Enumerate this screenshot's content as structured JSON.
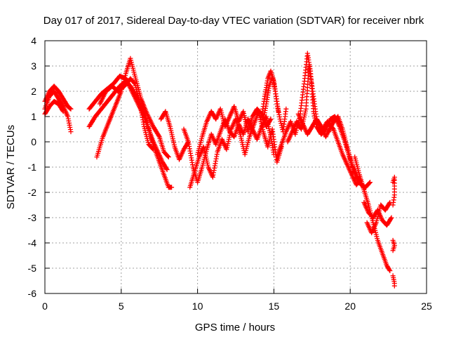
{
  "chart_data": {
    "type": "scatter",
    "title": "Day 017 of 2017, Sidereal Day-to-day VTEC variation (SDTVAR) for receiver nbrk",
    "xlabel": "GPS time / hours",
    "ylabel": "SDTVAR / TECUs",
    "xlim": [
      0,
      25
    ],
    "ylim": [
      -6,
      4
    ],
    "x_ticks": [
      "0",
      "5",
      "10",
      "15",
      "20",
      "25"
    ],
    "y_ticks": [
      "-6",
      "-5",
      "-4",
      "-3",
      "-2",
      "-1",
      "0",
      "1",
      "2",
      "3",
      "4"
    ],
    "x_tick_values": [
      0,
      5,
      10,
      15,
      20,
      25
    ],
    "y_tick_values": [
      -6,
      -5,
      -4,
      -3,
      -2,
      -1,
      0,
      1,
      2,
      3,
      4
    ],
    "grid": true,
    "legend": "none",
    "marker": "+",
    "series": [
      {
        "name": "nbrk",
        "color": "#ff0000",
        "tracks": [
          [
            [
              0.0,
              1.3
            ],
            [
              0.3,
              1.8
            ],
            [
              0.6,
              2.0
            ],
            [
              0.9,
              1.7
            ],
            [
              1.2,
              1.4
            ],
            [
              1.5,
              1.0
            ],
            [
              1.7,
              0.4
            ]
          ],
          [
            [
              0.0,
              1.6
            ],
            [
              0.3,
              2.0
            ],
            [
              0.6,
              2.2
            ],
            [
              0.9,
              2.0
            ],
            [
              1.2,
              1.7
            ],
            [
              1.5,
              1.4
            ],
            [
              1.7,
              1.3
            ]
          ],
          [
            [
              0.0,
              1.1
            ],
            [
              0.3,
              1.4
            ],
            [
              0.6,
              1.6
            ],
            [
              0.9,
              1.5
            ],
            [
              1.2,
              1.2
            ]
          ],
          [
            [
              2.9,
              0.6
            ],
            [
              3.3,
              1.0
            ],
            [
              3.7,
              1.3
            ],
            [
              4.1,
              1.6
            ],
            [
              4.5,
              1.9
            ],
            [
              4.9,
              2.2
            ],
            [
              5.3,
              2.4
            ],
            [
              5.6,
              2.2
            ],
            [
              6.0,
              1.8
            ],
            [
              6.3,
              1.4
            ],
            [
              6.6,
              1.0
            ],
            [
              6.9,
              0.3
            ],
            [
              7.2,
              -0.3
            ],
            [
              7.5,
              -0.8
            ],
            [
              7.8,
              -1.3
            ],
            [
              8.1,
              -1.8
            ],
            [
              8.3,
              -1.8
            ]
          ],
          [
            [
              2.9,
              1.3
            ],
            [
              3.3,
              1.6
            ],
            [
              3.7,
              1.9
            ],
            [
              4.1,
              2.1
            ],
            [
              4.5,
              2.3
            ],
            [
              4.9,
              2.6
            ],
            [
              5.3,
              2.5
            ],
            [
              5.7,
              2.0
            ],
            [
              6.1,
              1.5
            ],
            [
              6.5,
              1.0
            ],
            [
              6.8,
              0.5
            ],
            [
              7.1,
              0.0
            ],
            [
              7.4,
              -0.4
            ],
            [
              7.7,
              -0.8
            ],
            [
              8.0,
              -1.1
            ]
          ],
          [
            [
              3.4,
              -0.6
            ],
            [
              3.8,
              0.2
            ],
            [
              4.2,
              0.8
            ],
            [
              4.6,
              1.4
            ],
            [
              5.0,
              2.0
            ],
            [
              5.3,
              2.7
            ],
            [
              5.6,
              3.3
            ],
            [
              5.9,
              2.6
            ],
            [
              6.3,
              1.7
            ],
            [
              6.7,
              1.1
            ],
            [
              7.1,
              0.6
            ],
            [
              7.5,
              0.2
            ],
            [
              7.8,
              -0.4
            ],
            [
              8.1,
              -0.6
            ]
          ],
          [
            [
              3.6,
              1.5
            ],
            [
              4.0,
              2.0
            ],
            [
              4.4,
              2.2
            ],
            [
              4.8,
              2.0
            ],
            [
              5.2,
              2.2
            ],
            [
              5.6,
              2.5
            ],
            [
              5.9,
              2.3
            ],
            [
              6.2,
              1.6
            ],
            [
              6.5,
              0.6
            ],
            [
              6.8,
              -0.1
            ],
            [
              7.1,
              -0.3
            ]
          ],
          [
            [
              7.6,
              0.9
            ],
            [
              7.9,
              1.2
            ],
            [
              8.2,
              0.6
            ],
            [
              8.5,
              -0.2
            ],
            [
              8.8,
              -0.7
            ],
            [
              9.1,
              -0.3
            ],
            [
              9.4,
              0.0
            ]
          ],
          [
            [
              9.1,
              0.5
            ],
            [
              9.4,
              0.0
            ],
            [
              9.7,
              -1.0
            ],
            [
              10.0,
              -1.6
            ],
            [
              10.3,
              -1.0
            ],
            [
              10.6,
              -0.3
            ],
            [
              10.9,
              0.3
            ],
            [
              11.2,
              -0.1
            ],
            [
              11.5,
              0.4
            ],
            [
              11.8,
              0.9
            ],
            [
              12.1,
              0.4
            ],
            [
              12.4,
              0.2
            ],
            [
              12.7,
              0.7
            ],
            [
              13.0,
              0.3
            ],
            [
              13.3,
              0.9
            ],
            [
              13.6,
              0.5
            ],
            [
              13.9,
              0.1
            ],
            [
              14.2,
              0.6
            ],
            [
              14.5,
              1.0
            ],
            [
              14.8,
              0.2
            ],
            [
              15.0,
              -0.5
            ]
          ],
          [
            [
              9.5,
              -1.8
            ],
            [
              9.8,
              -1.2
            ],
            [
              10.1,
              -0.6
            ],
            [
              10.4,
              -0.2
            ],
            [
              10.7,
              -1.0
            ],
            [
              11.0,
              -1.4
            ],
            [
              11.3,
              -0.4
            ],
            [
              11.6,
              0.1
            ],
            [
              11.9,
              -0.3
            ],
            [
              12.2,
              0.5
            ],
            [
              12.5,
              0.9
            ],
            [
              12.8,
              0.3
            ],
            [
              13.1,
              -0.5
            ],
            [
              13.4,
              0.2
            ],
            [
              13.7,
              0.7
            ],
            [
              14.0,
              1.2
            ],
            [
              14.3,
              0.4
            ],
            [
              14.6,
              -0.2
            ],
            [
              14.9,
              0.5
            ],
            [
              15.2,
              -0.8
            ],
            [
              15.5,
              -0.2
            ]
          ],
          [
            [
              10.0,
              -0.5
            ],
            [
              10.3,
              0.2
            ],
            [
              10.6,
              0.8
            ],
            [
              10.9,
              1.2
            ],
            [
              11.2,
              0.9
            ],
            [
              11.5,
              1.3
            ],
            [
              11.8,
              0.6
            ],
            [
              12.1,
              1.0
            ],
            [
              12.4,
              1.4
            ],
            [
              12.7,
              0.8
            ],
            [
              13.0,
              1.2
            ],
            [
              13.3,
              0.4
            ],
            [
              13.6,
              1.0
            ],
            [
              13.9,
              1.3
            ],
            [
              14.2,
              1.1
            ],
            [
              14.5,
              0.6
            ],
            [
              14.8,
              0.9
            ]
          ],
          [
            [
              14.2,
              1.0
            ],
            [
              14.4,
              1.8
            ],
            [
              14.6,
              2.5
            ],
            [
              14.8,
              2.8
            ],
            [
              15.0,
              2.4
            ],
            [
              15.2,
              1.5
            ],
            [
              15.4,
              0.9
            ],
            [
              15.6,
              0.4
            ],
            [
              15.8,
              1.3
            ]
          ],
          [
            [
              14.3,
              0.8
            ],
            [
              14.5,
              1.5
            ],
            [
              14.7,
              2.2
            ],
            [
              14.9,
              2.6
            ],
            [
              15.1,
              2.0
            ],
            [
              15.3,
              1.2
            ]
          ],
          [
            [
              15.2,
              -0.6
            ],
            [
              15.5,
              -0.1
            ],
            [
              15.8,
              0.4
            ],
            [
              16.1,
              0.8
            ],
            [
              16.4,
              0.3
            ],
            [
              16.7,
              1.0
            ],
            [
              17.0,
              2.4
            ],
            [
              17.2,
              3.5
            ],
            [
              17.4,
              2.8
            ],
            [
              17.6,
              1.2
            ],
            [
              17.8,
              0.6
            ],
            [
              18.1,
              0.3
            ],
            [
              18.4,
              0.5
            ],
            [
              18.7,
              0.9
            ],
            [
              19.0,
              1.0
            ],
            [
              19.3,
              0.6
            ],
            [
              19.6,
              0.1
            ],
            [
              19.9,
              -0.5
            ],
            [
              20.2,
              -1.1
            ],
            [
              20.5,
              -1.6
            ]
          ],
          [
            [
              15.9,
              0.0
            ],
            [
              16.2,
              0.4
            ],
            [
              16.5,
              0.8
            ],
            [
              16.8,
              0.5
            ],
            [
              17.1,
              1.3
            ],
            [
              17.3,
              3.0
            ],
            [
              17.5,
              2.2
            ],
            [
              17.8,
              0.9
            ],
            [
              18.1,
              0.6
            ],
            [
              18.4,
              0.2
            ],
            [
              18.7,
              0.6
            ],
            [
              19.0,
              0.9
            ],
            [
              19.3,
              0.8
            ]
          ],
          [
            [
              16.6,
              1.1
            ],
            [
              16.9,
              0.7
            ],
            [
              17.2,
              0.3
            ],
            [
              17.5,
              0.6
            ],
            [
              17.8,
              0.9
            ],
            [
              18.1,
              0.4
            ],
            [
              18.5,
              0.8
            ],
            [
              18.9,
              0.5
            ],
            [
              19.2,
              0.0
            ],
            [
              19.5,
              -0.5
            ],
            [
              19.8,
              -0.9
            ],
            [
              20.1,
              -1.3
            ],
            [
              20.4,
              -1.7
            ],
            [
              20.7,
              -1.5
            ]
          ],
          [
            [
              18.6,
              0.4
            ],
            [
              18.9,
              0.8
            ],
            [
              19.2,
              1.0
            ],
            [
              19.5,
              0.5
            ],
            [
              19.8,
              -0.2
            ],
            [
              20.1,
              -0.9
            ],
            [
              20.4,
              -1.3
            ],
            [
              20.7,
              -1.7
            ],
            [
              21.0,
              -1.8
            ],
            [
              21.3,
              -1.6
            ]
          ],
          [
            [
              20.3,
              -0.6
            ],
            [
              20.6,
              -1.3
            ],
            [
              20.9,
              -1.9
            ],
            [
              21.2,
              -2.5
            ],
            [
              21.5,
              -3.2
            ],
            [
              21.8,
              -3.9
            ],
            [
              22.1,
              -4.4
            ],
            [
              22.4,
              -4.9
            ],
            [
              22.6,
              -5.1
            ]
          ],
          [
            [
              20.9,
              -2.4
            ],
            [
              21.2,
              -2.8
            ],
            [
              21.5,
              -3.0
            ],
            [
              21.8,
              -2.7
            ],
            [
              22.1,
              -3.1
            ],
            [
              22.4,
              -3.3
            ],
            [
              22.7,
              -3.0
            ]
          ],
          [
            [
              21.1,
              -3.2
            ],
            [
              21.4,
              -3.6
            ],
            [
              21.7,
              -3.2
            ],
            [
              22.0,
              -2.5
            ],
            [
              22.3,
              -2.7
            ],
            [
              22.6,
              -2.4
            ]
          ],
          [
            [
              22.8,
              -5.3
            ],
            [
              22.9,
              -5.6
            ],
            [
              22.9,
              -5.7
            ]
          ],
          [
            [
              22.8,
              -3.9
            ],
            [
              22.9,
              -4.1
            ],
            [
              22.8,
              -4.3
            ]
          ],
          [
            [
              22.8,
              -1.6
            ],
            [
              22.9,
              -1.4
            ],
            [
              22.9,
              -2.1
            ],
            [
              22.8,
              -2.5
            ]
          ]
        ]
      }
    ]
  }
}
